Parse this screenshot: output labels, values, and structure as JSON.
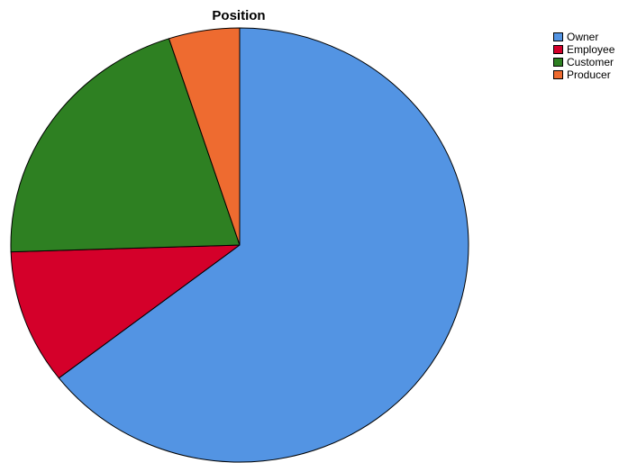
{
  "chart_data": {
    "type": "pie",
    "title": "Position",
    "categories": [
      "Owner",
      "Employee",
      "Customer",
      "Producer"
    ],
    "values": [
      64.5,
      10,
      20.5,
      5
    ],
    "colors": [
      "#5394e3",
      "#d4002a",
      "#2e8022",
      "#ee6b30"
    ],
    "start_angle_deg": 0,
    "direction": "clockwise",
    "legend_position": "top-right",
    "slice_border_color": "#000000"
  }
}
